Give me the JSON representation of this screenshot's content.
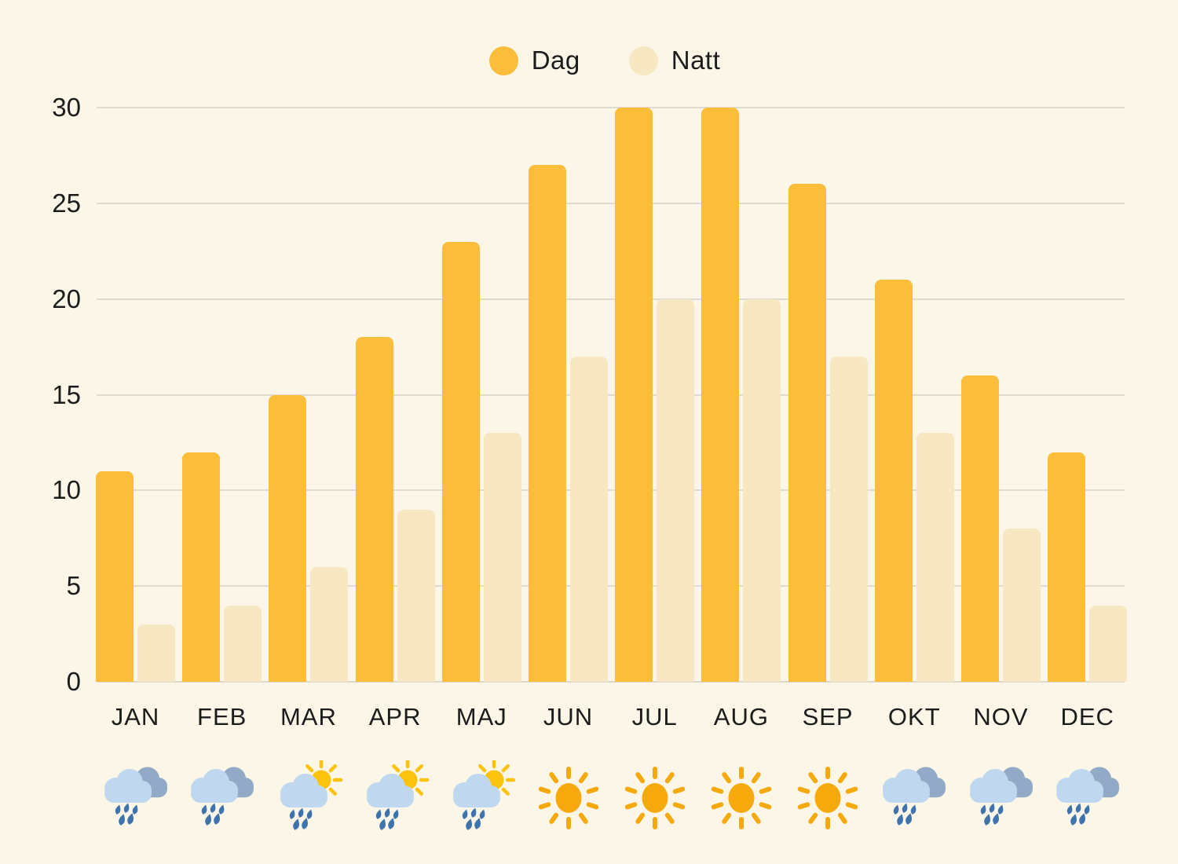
{
  "background": "#FBF6E8",
  "legend": {
    "items": [
      {
        "label": "Dag",
        "color": "#FCBD3B"
      },
      {
        "label": "Natt",
        "color": "#F8E7C3"
      }
    ]
  },
  "chart_data": {
    "type": "bar",
    "categories": [
      "JAN",
      "FEB",
      "MAR",
      "APR",
      "MAJ",
      "JUN",
      "JUL",
      "AUG",
      "SEP",
      "OKT",
      "NOV",
      "DEC"
    ],
    "series": [
      {
        "name": "Dag",
        "color": "#FCBD3B",
        "values": [
          11,
          12,
          15,
          18,
          23,
          27,
          30,
          30,
          26,
          21,
          16,
          12
        ]
      },
      {
        "name": "Natt",
        "color": "#F8E7C3",
        "values": [
          3,
          4,
          6,
          9,
          13,
          17,
          20,
          20,
          17,
          13,
          8,
          4
        ]
      }
    ],
    "ylim": [
      0,
      30
    ],
    "yticks": [
      0,
      5,
      10,
      15,
      20,
      25,
      30
    ],
    "grid": true,
    "legend_position": "top-center",
    "title": "",
    "xlabel": "",
    "ylabel": "",
    "month_icons": [
      "rain",
      "rain",
      "rain-sun",
      "rain-sun",
      "rain-sun",
      "sun",
      "sun",
      "sun",
      "sun",
      "rain",
      "rain",
      "rain"
    ]
  },
  "colors": {
    "gridline": "#E0DBD1",
    "baseline": "#DDD8CE",
    "axis_text": "#1C1C1C",
    "icon_sun_big": "#F6A90D",
    "icon_sun_small": "#FBC30B",
    "icon_cloud_front": "#BFD8F0",
    "icon_cloud_back": "#92AAC7",
    "icon_raindrop": "#3E73AE"
  }
}
